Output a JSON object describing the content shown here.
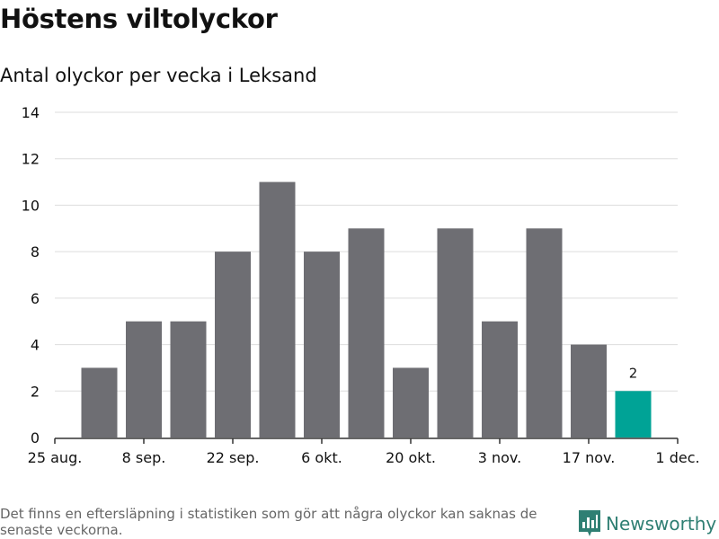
{
  "title": "Höstens viltolyckor",
  "subtitle": "Antal olyckor per vecka i Leksand",
  "footnote": "Det finns en eftersläpning i statistiken som gör att några olyckor kan saknas de senaste veckorna.",
  "brand": {
    "name": "Newsworthy",
    "icon": "newsworthy-logo-icon"
  },
  "colors": {
    "bar": "#6e6e73",
    "highlight": "#00a396",
    "grid": "#dddddd",
    "axis": "#333333",
    "text": "#111111"
  },
  "chart_data": {
    "type": "bar",
    "title": "Höstens viltolyckor",
    "subtitle": "Antal olyckor per vecka i Leksand",
    "xlabel": "",
    "ylabel": "",
    "ylim": [
      0,
      14
    ],
    "yticks": [
      0,
      2,
      4,
      6,
      8,
      10,
      12,
      14
    ],
    "grid": true,
    "x_tick_labels": [
      "25 aug.",
      "8 sep.",
      "22 sep.",
      "6 okt.",
      "20 okt.",
      "3 nov.",
      "17 nov.",
      "1 dec."
    ],
    "categories": [
      "2023-09-01",
      "2023-09-08",
      "2023-09-15",
      "2023-09-22",
      "2023-09-29",
      "2023-10-06",
      "2023-10-13",
      "2023-10-20",
      "2023-10-27",
      "2023-11-03",
      "2023-11-10",
      "2023-11-17",
      "2023-11-24"
    ],
    "values": [
      3,
      5,
      5,
      8,
      11,
      8,
      9,
      3,
      9,
      5,
      9,
      4,
      2
    ],
    "highlight_index": 12,
    "data_labels": [
      {
        "index": 12,
        "text": "2"
      }
    ]
  }
}
